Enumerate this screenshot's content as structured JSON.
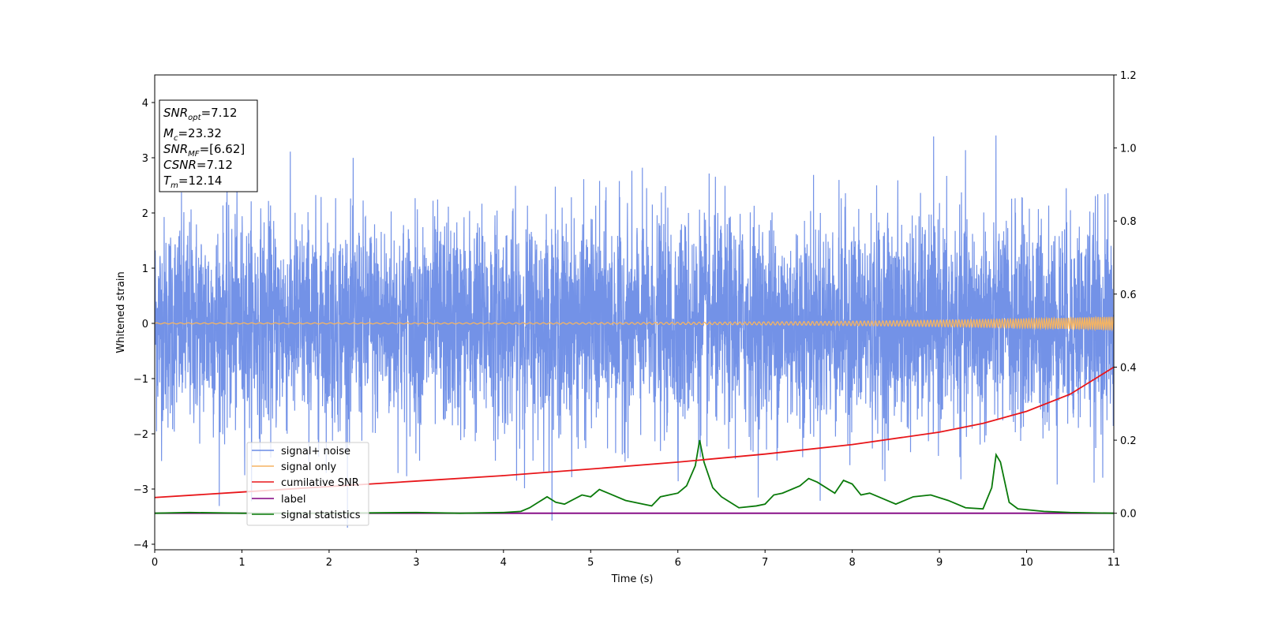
{
  "chart_data": {
    "type": "line",
    "title": "",
    "xlabel": "Time (s)",
    "ylabel": "Whitened strain",
    "xlim": [
      0,
      11
    ],
    "ylim": [
      -4.1,
      4.5
    ],
    "y2lim": [
      -0.1,
      1.2
    ],
    "x_ticks": [
      "0",
      "1",
      "2",
      "3",
      "4",
      "5",
      "6",
      "7",
      "8",
      "9",
      "10",
      "11"
    ],
    "y_ticks": [
      "−4",
      "−3",
      "−2",
      "−1",
      "0",
      "1",
      "2",
      "3",
      "4"
    ],
    "y2_ticks": [
      "0.0",
      "0.2",
      "0.4",
      "0.6",
      "0.8",
      "1.0",
      "1.2"
    ],
    "grid": false,
    "legend_position": "lower-left",
    "colors": {
      "noise": "#6b8ce6",
      "signal": "#f5b462",
      "snr": "#e8161a",
      "label": "#800080",
      "stats": "#0a7a0a"
    },
    "legend": [
      {
        "key": "noise",
        "label": "signal+ noise"
      },
      {
        "key": "signal",
        "label": "signal only"
      },
      {
        "key": "snr",
        "label": "cumilative SNR"
      },
      {
        "key": "label",
        "label": "label"
      },
      {
        "key": "stats",
        "label": "signal statistics"
      }
    ],
    "series": [
      {
        "name": "signal+ noise",
        "axis": "left",
        "description_range": [
          -3.7,
          3.7
        ]
      },
      {
        "name": "signal only",
        "axis": "left",
        "amplitude_start": 0.01,
        "amplitude_end": 0.12
      },
      {
        "name": "cumilative SNR",
        "axis": "right",
        "x": [
          0,
          1,
          2,
          3,
          4,
          5,
          6,
          7,
          8,
          9,
          9.5,
          10,
          10.5,
          11
        ],
        "y": [
          0.043,
          0.058,
          0.073,
          0.088,
          0.103,
          0.121,
          0.14,
          0.162,
          0.188,
          0.222,
          0.246,
          0.279,
          0.326,
          0.4
        ]
      },
      {
        "name": "label",
        "axis": "right",
        "x": [
          0,
          11
        ],
        "y": [
          0,
          0
        ]
      },
      {
        "name": "signal statistics",
        "axis": "right",
        "x": [
          0,
          0.4,
          1,
          2,
          3,
          3.5,
          4,
          4.2,
          4.3,
          4.4,
          4.5,
          4.6,
          4.7,
          4.9,
          5.0,
          5.1,
          5.2,
          5.4,
          5.6,
          5.7,
          5.8,
          5.9,
          6.0,
          6.1,
          6.2,
          6.25,
          6.3,
          6.4,
          6.5,
          6.7,
          6.9,
          7.0,
          7.1,
          7.2,
          7.4,
          7.5,
          7.6,
          7.8,
          7.9,
          8.0,
          8.1,
          8.2,
          8.3,
          8.5,
          8.7,
          8.9,
          9.1,
          9.3,
          9.5,
          9.6,
          9.65,
          9.7,
          9.8,
          9.9,
          10.2,
          10.5,
          11
        ],
        "y": [
          0,
          0.002,
          0,
          0,
          0.002,
          0,
          0.002,
          0.005,
          0.015,
          0.03,
          0.045,
          0.03,
          0.025,
          0.05,
          0.045,
          0.065,
          0.055,
          0.035,
          0.025,
          0.02,
          0.045,
          0.05,
          0.055,
          0.075,
          0.13,
          0.2,
          0.14,
          0.07,
          0.045,
          0.015,
          0.02,
          0.025,
          0.05,
          0.055,
          0.075,
          0.095,
          0.085,
          0.055,
          0.09,
          0.08,
          0.05,
          0.055,
          0.045,
          0.025,
          0.045,
          0.05,
          0.035,
          0.015,
          0.012,
          0.07,
          0.16,
          0.14,
          0.03,
          0.012,
          0.005,
          0.002,
          0
        ]
      }
    ],
    "stats_box": {
      "opt_symbol": "SNR",
      "opt_sub": "opt",
      "opt_val": "=7.12",
      "mc_symbol": "M",
      "mc_sub": "c",
      "mc_val": "=23.32",
      "mf_symbol": "SNR",
      "mf_sub": "MF",
      "mf_val": "=[6.62]",
      "csnr_symbol": "CSNR",
      "csnr_val": "=7.12",
      "tm_symbol": "T",
      "tm_sub": "m",
      "tm_val": "=12.14"
    }
  }
}
